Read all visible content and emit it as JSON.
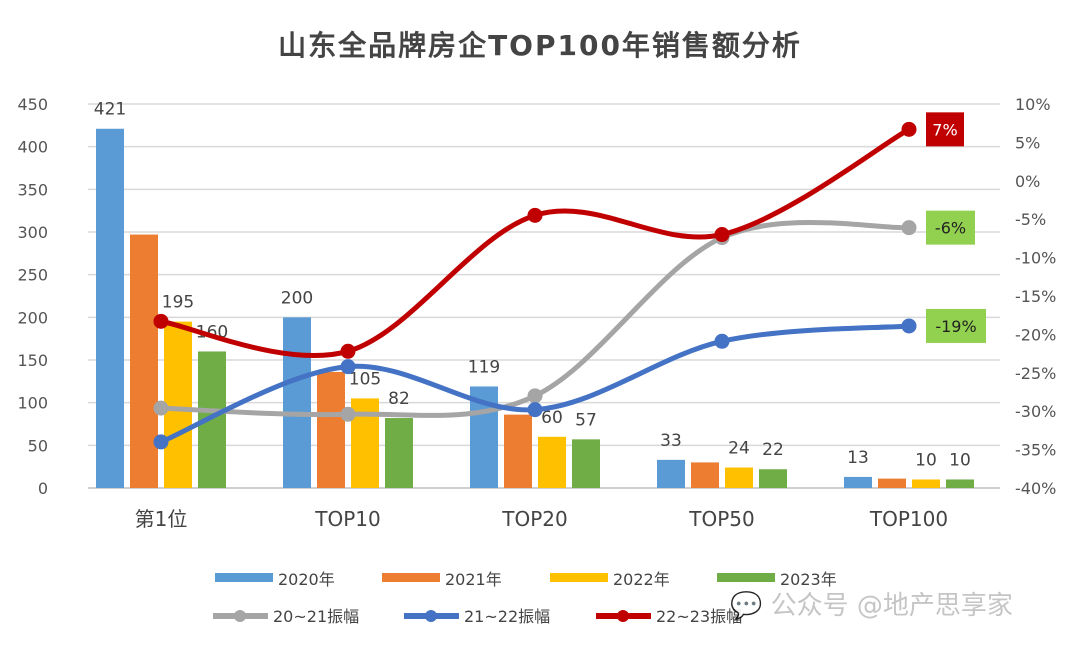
{
  "chart_data": {
    "type": "bar+line",
    "title": "山东全品牌房企TOP100年销售额分析",
    "categories": [
      "第1位",
      "TOP10",
      "TOP20",
      "TOP50",
      "TOP100"
    ],
    "left_axis": {
      "min": 0,
      "max": 450,
      "step": 50,
      "ticks": [
        "0",
        "50",
        "100",
        "150",
        "200",
        "250",
        "300",
        "350",
        "400",
        "450"
      ]
    },
    "right_axis": {
      "min": -40,
      "max": 10,
      "step": 5,
      "unit": "%",
      "ticks": [
        "-40%",
        "-35%",
        "-30%",
        "-25%",
        "-20%",
        "-15%",
        "-10%",
        "-5%",
        "0%",
        "5%",
        "10%"
      ]
    },
    "grid": true,
    "legend_position": "bottom",
    "bar_series": [
      {
        "name": "2020年",
        "color": "#5b9bd5",
        "values": [
          421,
          200,
          119,
          33,
          13
        ],
        "labels": [
          "421",
          "200",
          "119",
          "33",
          "13"
        ]
      },
      {
        "name": "2021年",
        "color": "#ed7d31",
        "values": [
          297,
          136,
          86,
          30,
          11
        ],
        "labels": [
          "",
          "",
          "",
          "",
          ""
        ]
      },
      {
        "name": "2022年",
        "color": "#ffc000",
        "values": [
          195,
          105,
          60,
          24,
          10
        ],
        "labels": [
          "195",
          "105",
          "60",
          "24",
          "10"
        ]
      },
      {
        "name": "2023年",
        "color": "#70ad47",
        "values": [
          160,
          82,
          57,
          22,
          10
        ],
        "labels": [
          "160",
          "82",
          "57",
          "22",
          "10"
        ]
      }
    ],
    "line_series": [
      {
        "name": "20~21振幅",
        "color": "#a5a5a5",
        "values": [
          -29.6,
          -30.4,
          -28,
          -7.4,
          -6.1
        ],
        "end_label": "-6%",
        "end_label_bg": "#92d050"
      },
      {
        "name": "21~22振幅",
        "color": "#4472c4",
        "values": [
          -34,
          -24.2,
          -29.8,
          -20.9,
          -18.9
        ],
        "end_label": "-19%",
        "end_label_bg": "#92d050"
      },
      {
        "name": "22~23振幅",
        "color": "#c00000",
        "values": [
          -18.3,
          -22.2,
          -4.5,
          -7,
          6.7
        ],
        "end_label": "7%",
        "end_label_bg": "#c00000"
      }
    ]
  },
  "watermark": "公众号 @地产思享家"
}
